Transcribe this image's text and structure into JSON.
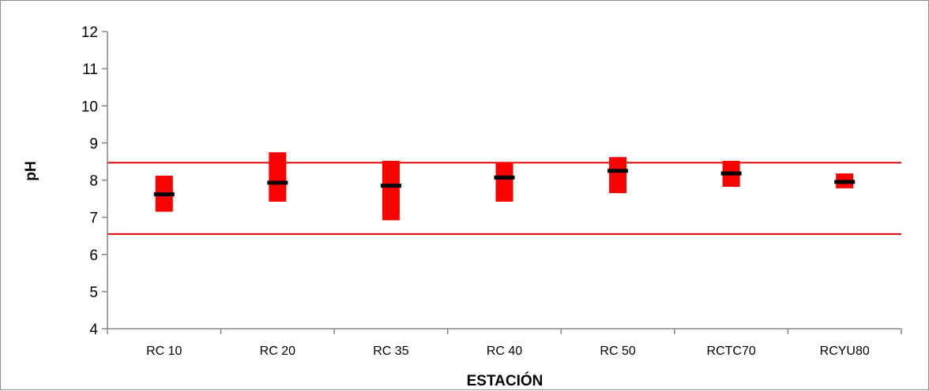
{
  "chart_data": {
    "type": "range",
    "title": "",
    "xlabel": "ESTACIÓN",
    "ylabel": "pH",
    "ylim": [
      4,
      12
    ],
    "yticks": [
      4,
      5,
      6,
      7,
      8,
      9,
      10,
      11,
      12
    ],
    "grid": false,
    "legend": "none",
    "categories": [
      "RC 10",
      "RC 20",
      "RC 35",
      "RC 40",
      "RC 50",
      "RCTC70",
      "RCYU80"
    ],
    "series": [
      {
        "min": [
          7.15,
          7.42,
          6.92,
          7.42,
          7.65,
          7.82,
          7.78
        ]
      },
      {
        "max": [
          8.12,
          8.75,
          8.52,
          8.48,
          8.62,
          8.52,
          8.18
        ]
      },
      {
        "median": [
          7.62,
          7.93,
          7.85,
          8.07,
          8.25,
          8.18,
          7.95
        ]
      }
    ],
    "reference_lines": [
      8.47,
      6.55
    ],
    "colors": {
      "range_bar": "#ff0000",
      "median": "#000000",
      "reference_line": "#e00000",
      "axis": "#868686"
    }
  }
}
